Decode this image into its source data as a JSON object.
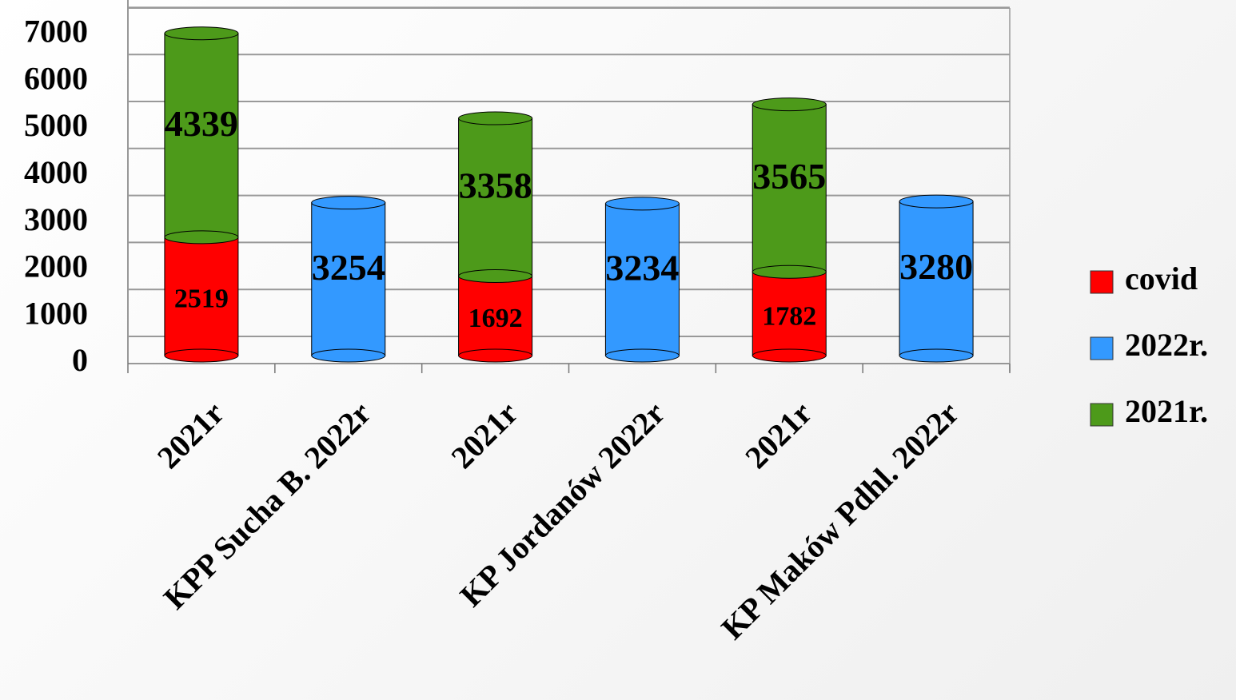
{
  "chart_data": {
    "type": "bar",
    "stacked": true,
    "categories": [
      "2021r",
      "KPP Sucha B. 2022r",
      "2021r",
      "KP Jordanów 2022r",
      "2021r",
      "KP Maków Pdhl. 2022r"
    ],
    "series": [
      {
        "name": "covid",
        "color": "#ff0000",
        "values": [
          2519,
          null,
          1692,
          null,
          1782,
          null
        ]
      },
      {
        "name": "2022r.",
        "color": "#3399ff",
        "values": [
          null,
          3254,
          null,
          3234,
          null,
          3280
        ]
      },
      {
        "name": "2021r.",
        "color": "#4d9a1a",
        "values": [
          4339,
          null,
          3358,
          null,
          3565,
          null
        ]
      }
    ],
    "ylim": [
      0,
      7500
    ],
    "yticks": [
      0,
      1000,
      2000,
      3000,
      4000,
      5000,
      6000,
      7000
    ],
    "grid": true,
    "legend": "right"
  }
}
